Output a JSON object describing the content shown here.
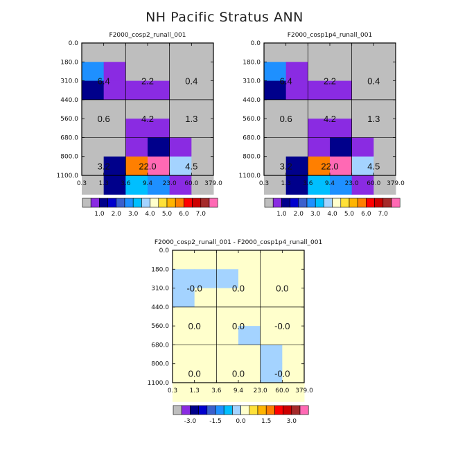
{
  "title": "NH Pacific Stratus ANN",
  "chart_data": [
    {
      "type": "heatmap",
      "title": "F2000_cosp2_runall_001",
      "x_edges": [
        "0.3",
        "1.3",
        "3.6",
        "9.4",
        "23.0",
        "60.0",
        "379.0"
      ],
      "y_edges": [
        "0.0",
        "180.0",
        "310.0",
        "440.0",
        "560.0",
        "680.0",
        "800.0",
        "1100.0"
      ],
      "cells": [
        [
          "gray",
          "gray",
          "gray",
          "gray",
          "gray",
          "gray"
        ],
        [
          "c3",
          "c1",
          "gray",
          "gray",
          "gray",
          "gray"
        ],
        [
          "c2",
          "c1",
          "c1",
          "c1",
          "gray",
          "gray"
        ],
        [
          "gray",
          "gray",
          "gray",
          "gray",
          "gray",
          "gray"
        ],
        [
          "gray",
          "gray",
          "c1",
          "c1",
          "gray",
          "gray"
        ],
        [
          "gray",
          "gray",
          "c1",
          "c2",
          "c1",
          "gray"
        ],
        [
          "gray",
          "c2",
          "c9",
          "c13",
          "c5",
          "gray"
        ],
        [
          "gray",
          "c2",
          "c4",
          "c3",
          "c1",
          "gray"
        ]
      ],
      "block_labels": [
        [
          "6.4",
          "2.2",
          "0.4"
        ],
        [
          "0.6",
          "4.2",
          "1.3"
        ],
        [
          "3.2",
          "22.0",
          "4.5"
        ]
      ],
      "colorbar": {
        "colors": [
          "#bebebe",
          "#8a2be2",
          "#00008b",
          "#0000cd",
          "#3a5fcd",
          "#1e90ff",
          "#00bfff",
          "#a4d3ff",
          "#ffffcc",
          "#ffe139",
          "#ffb400",
          "#ff7f00",
          "#ff0000",
          "#cd0000",
          "#a52a2a",
          "#ff69b4"
        ],
        "labels": [
          "1.0",
          "2.0",
          "3.0",
          "4.0",
          "5.0",
          "6.0",
          "7.0"
        ]
      }
    },
    {
      "type": "heatmap",
      "title": "F2000_cosp1p4_runall_001",
      "x_edges": [
        "0.3",
        "1.3",
        "3.6",
        "9.4",
        "23.0",
        "60.0",
        "379.0"
      ],
      "y_edges": [
        "0.0",
        "180.0",
        "310.0",
        "440.0",
        "560.0",
        "680.0",
        "800.0",
        "1100.0"
      ],
      "cells": [
        [
          "gray",
          "gray",
          "gray",
          "gray",
          "gray",
          "gray"
        ],
        [
          "c3",
          "c1",
          "gray",
          "gray",
          "gray",
          "gray"
        ],
        [
          "c2",
          "c1",
          "c1",
          "c1",
          "gray",
          "gray"
        ],
        [
          "gray",
          "gray",
          "gray",
          "gray",
          "gray",
          "gray"
        ],
        [
          "gray",
          "gray",
          "c1",
          "c1",
          "gray",
          "gray"
        ],
        [
          "gray",
          "gray",
          "c1",
          "c2",
          "c1",
          "gray"
        ],
        [
          "gray",
          "c2",
          "c9",
          "c13",
          "c5",
          "gray"
        ],
        [
          "gray",
          "c2",
          "c4",
          "c3",
          "c1",
          "gray"
        ]
      ],
      "block_labels": [
        [
          "6.4",
          "2.2",
          "0.4"
        ],
        [
          "0.6",
          "4.2",
          "1.3"
        ],
        [
          "3.2",
          "22.0",
          "4.5"
        ]
      ],
      "colorbar": {
        "colors": [
          "#bebebe",
          "#8a2be2",
          "#00008b",
          "#0000cd",
          "#3a5fcd",
          "#1e90ff",
          "#00bfff",
          "#a4d3ff",
          "#ffffcc",
          "#ffe139",
          "#ffb400",
          "#ff7f00",
          "#ff0000",
          "#cd0000",
          "#a52a2a",
          "#ff69b4"
        ],
        "labels": [
          "1.0",
          "2.0",
          "3.0",
          "4.0",
          "5.0",
          "6.0",
          "7.0"
        ]
      }
    },
    {
      "type": "heatmap",
      "title": "F2000_cosp2_runall_001 - F2000_cosp1p4_runall_001",
      "x_edges": [
        "0.3",
        "1.3",
        "3.6",
        "9.4",
        "23.0",
        "60.0",
        "379.0"
      ],
      "y_edges": [
        "0.0",
        "180.0",
        "310.0",
        "440.0",
        "560.0",
        "680.0",
        "800.0",
        "1100.0"
      ],
      "cells": [
        [
          "y",
          "y",
          "y",
          "y",
          "y",
          "y"
        ],
        [
          "b",
          "b",
          "b",
          "y",
          "y",
          "y"
        ],
        [
          "b",
          "y",
          "y",
          "y",
          "y",
          "y"
        ],
        [
          "y",
          "y",
          "y",
          "y",
          "y",
          "y"
        ],
        [
          "y",
          "y",
          "y",
          "b",
          "y",
          "y"
        ],
        [
          "y",
          "y",
          "y",
          "y",
          "b",
          "y"
        ],
        [
          "y",
          "y",
          "y",
          "y",
          "b",
          "y"
        ],
        [
          "y",
          "y",
          "y",
          "y",
          "y",
          "y"
        ]
      ],
      "block_labels": [
        [
          "-0.0",
          "0.0",
          "0.0"
        ],
        [
          "0.0",
          "0.0",
          "-0.0"
        ],
        [
          "0.0",
          "0.0",
          "-0.0"
        ]
      ],
      "colorbar": {
        "colors": [
          "#bebebe",
          "#8a2be2",
          "#00008b",
          "#0000cd",
          "#3a5fcd",
          "#1e90ff",
          "#00bfff",
          "#a4d3ff",
          "#ffffcc",
          "#ffe139",
          "#ffb400",
          "#ff7f00",
          "#ff0000",
          "#cd0000",
          "#a52a2a",
          "#ff69b4"
        ],
        "labels": [
          "-3.0",
          "-1.5",
          "0.0",
          "1.5",
          "3.0"
        ]
      }
    }
  ],
  "palette": {
    "gray": "#bebebe",
    "c1": "#8a2be2",
    "c2": "#00008b",
    "c3": "#1e90ff",
    "c4": "#00bfff",
    "c5": "#a4d3ff",
    "c9": "#ff7f00",
    "c13": "#ff69b4",
    "y": "#ffffcc",
    "b": "#a4d3ff"
  }
}
